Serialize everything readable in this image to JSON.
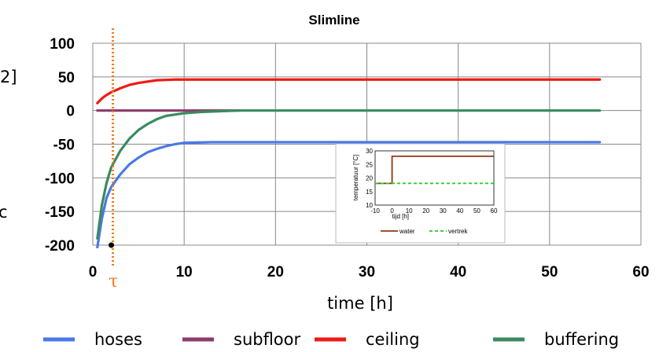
{
  "chart_data": [
    {
      "type": "line",
      "title": "Slimline",
      "xlabel": "time [h]",
      "ylabel_fragment": "2]",
      "ylabel_fragment_left": "c",
      "xlim": [
        0,
        60
      ],
      "ylim": [
        -200,
        100
      ],
      "x_ticks": [
        0,
        10,
        20,
        30,
        40,
        50,
        60
      ],
      "y_ticks": [
        100,
        50,
        0,
        -50,
        -100,
        -150,
        -200
      ],
      "grid": true,
      "legend_position": "bottom",
      "marker_label": "τ",
      "marker_x": 2.2,
      "series": [
        {
          "name": "hoses",
          "color": "#4a78e6",
          "x": [
            0.5,
            1,
            1.5,
            2,
            3,
            4,
            5,
            6,
            7,
            8,
            9,
            10,
            13,
            16,
            20,
            30,
            40,
            50,
            55.5
          ],
          "y": [
            -203,
            -160,
            -130,
            -114,
            -95,
            -80,
            -70,
            -62,
            -57,
            -53,
            -50,
            -48,
            -47,
            -47,
            -47,
            -47,
            -47,
            -47,
            -47
          ]
        },
        {
          "name": "subfloor",
          "color": "#8b3a6a",
          "x": [
            0.5,
            5,
            10,
            16
          ],
          "y": [
            0,
            0,
            0,
            0
          ]
        },
        {
          "name": "ceiling",
          "color": "#f01a14",
          "x": [
            0.5,
            1,
            1.5,
            2,
            3,
            4,
            5,
            6,
            7,
            8,
            9,
            10,
            20,
            30,
            40,
            50,
            55.5
          ],
          "y": [
            11,
            18,
            23,
            27,
            33,
            38,
            41,
            43,
            45,
            45.5,
            46,
            46,
            46,
            46,
            46,
            46,
            46
          ]
        },
        {
          "name": "buffering",
          "color": "#3a8a5e",
          "x": [
            0.5,
            1,
            1.5,
            2,
            3,
            4,
            5,
            6,
            7,
            8,
            9,
            10,
            12,
            14,
            16,
            20,
            30,
            40,
            50,
            55.5
          ],
          "y": [
            -190,
            -140,
            -108,
            -85,
            -60,
            -42,
            -29,
            -20,
            -13,
            -8,
            -6,
            -4,
            -2,
            -1,
            0,
            0,
            0,
            0,
            0,
            0
          ]
        }
      ]
    },
    {
      "type": "line",
      "title": "",
      "xlabel": "tijd [h]",
      "ylabel": "temperatuur [°C]",
      "xlim": [
        -10,
        60
      ],
      "ylim": [
        10,
        30
      ],
      "x_ticks": [
        -10,
        0,
        10,
        20,
        30,
        40,
        50,
        60
      ],
      "y_ticks": [
        30,
        25,
        20,
        15,
        10
      ],
      "legend_position": "bottom",
      "series": [
        {
          "name": "water",
          "color": "#8b3a12",
          "style": "solid",
          "x": [
            -10,
            0,
            0,
            60
          ],
          "y": [
            18,
            18,
            28,
            28
          ]
        },
        {
          "name": "vertrek",
          "color": "#22cc22",
          "style": "dashed",
          "x": [
            -10,
            60
          ],
          "y": [
            18,
            18
          ]
        }
      ]
    }
  ]
}
